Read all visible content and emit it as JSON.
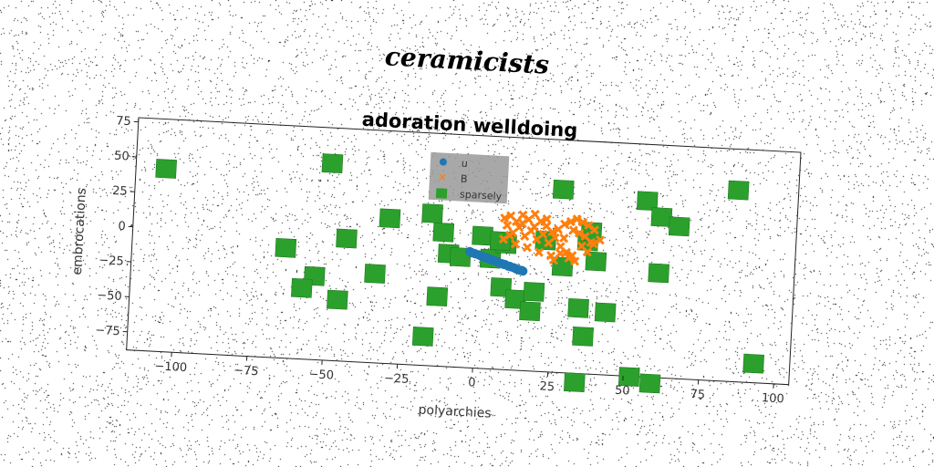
{
  "suptitle": "ceramicists",
  "chart_data": {
    "type": "scatter",
    "title": "adoration welldoing",
    "xlabel": "polyarchies",
    "ylabel": "embrocations",
    "xlim": [
      -115,
      105
    ],
    "ylim": [
      -88,
      78
    ],
    "xticks": [
      -100,
      -75,
      -50,
      -25,
      0,
      25,
      50,
      75,
      100
    ],
    "yticks": [
      -75,
      -50,
      -25,
      0,
      25,
      50,
      75
    ],
    "grid": false,
    "legend_position": "upper-center",
    "series": [
      {
        "name": "u",
        "color": "#1f77b4",
        "marker": "circle",
        "points": [
          [
            -3,
            -5
          ],
          [
            -2,
            -6
          ],
          [
            -1,
            -6.5
          ],
          [
            0,
            -7
          ],
          [
            1,
            -8
          ],
          [
            2,
            -8.5
          ],
          [
            3,
            -9
          ],
          [
            4,
            -10
          ],
          [
            5,
            -10.5
          ],
          [
            6,
            -11
          ],
          [
            7,
            -12
          ],
          [
            8,
            -12.5
          ],
          [
            9,
            -13
          ],
          [
            10,
            -14
          ],
          [
            11,
            -14.5
          ],
          [
            12,
            -15
          ],
          [
            13,
            -16
          ],
          [
            14,
            -16.5
          ],
          [
            15,
            -17
          ],
          [
            -2.5,
            -5.5
          ],
          [
            0.5,
            -7.5
          ],
          [
            2.5,
            -9
          ],
          [
            4.5,
            -10
          ],
          [
            6.5,
            -11.5
          ],
          [
            8.5,
            -13
          ],
          [
            10.5,
            -14
          ],
          [
            12.5,
            -15.5
          ],
          [
            14.5,
            -16.5
          ]
        ]
      },
      {
        "name": "B",
        "color": "#ff7f0e",
        "marker": "x",
        "points": [
          [
            8,
            20
          ],
          [
            10,
            22
          ],
          [
            12,
            18
          ],
          [
            14,
            23
          ],
          [
            16,
            20
          ],
          [
            18,
            24
          ],
          [
            20,
            19
          ],
          [
            22,
            21
          ],
          [
            9,
            15
          ],
          [
            11,
            10
          ],
          [
            13,
            14
          ],
          [
            15,
            8
          ],
          [
            17,
            12
          ],
          [
            19,
            6
          ],
          [
            21,
            10
          ],
          [
            23,
            4
          ],
          [
            25,
            8
          ],
          [
            27,
            2
          ],
          [
            29,
            -2
          ],
          [
            31,
            -4
          ],
          [
            26,
            14
          ],
          [
            28,
            18
          ],
          [
            30,
            20
          ],
          [
            32,
            22
          ],
          [
            34,
            20
          ],
          [
            36,
            18
          ],
          [
            38,
            15
          ],
          [
            33,
            12
          ],
          [
            35,
            10
          ],
          [
            37,
            6
          ],
          [
            34,
            3
          ],
          [
            36,
            -1
          ],
          [
            30,
            -6
          ],
          [
            27,
            -3
          ],
          [
            24,
            -5
          ],
          [
            20,
            -3
          ],
          [
            16,
            0
          ],
          [
            12,
            2
          ],
          [
            8,
            5
          ],
          [
            10,
            8
          ],
          [
            14,
            17
          ],
          [
            18,
            15
          ],
          [
            22,
            16
          ],
          [
            25,
            -8
          ],
          [
            32,
            -8
          ],
          [
            38,
            5
          ],
          [
            40,
            8
          ],
          [
            24,
            12
          ],
          [
            28,
            8
          ],
          [
            31,
            14
          ]
        ]
      },
      {
        "name": "sparsely",
        "color": "#2ca02c",
        "marker": "square",
        "points": [
          [
            -105,
            42
          ],
          [
            -50,
            52
          ],
          [
            -44,
            -1
          ],
          [
            -64,
            -10
          ],
          [
            -46,
            -45
          ],
          [
            -30,
            15
          ],
          [
            -54,
            -29
          ],
          [
            -58,
            -38
          ],
          [
            -34,
            -25
          ],
          [
            -17,
            -68
          ],
          [
            -16,
            20
          ],
          [
            -12,
            7
          ],
          [
            -10,
            -8
          ],
          [
            -13,
            -39
          ],
          [
            -6,
            -10
          ],
          [
            1,
            6
          ],
          [
            4,
            -10
          ],
          [
            9,
            1
          ],
          [
            7,
            3
          ],
          [
            8,
            -30
          ],
          [
            13,
            -38
          ],
          [
            19,
            -32
          ],
          [
            18,
            -46
          ],
          [
            22,
            5
          ],
          [
            28,
            -13
          ],
          [
            27,
            42
          ],
          [
            34,
            -42
          ],
          [
            36,
            6
          ],
          [
            37,
            13
          ],
          [
            39,
            -8
          ],
          [
            43,
            -44
          ],
          [
            36,
            -62
          ],
          [
            34,
            -95
          ],
          [
            55,
            37
          ],
          [
            60,
            26
          ],
          [
            66,
            20
          ],
          [
            85,
            48
          ],
          [
            60,
            -14
          ],
          [
            52,
            -89
          ],
          [
            59,
            -93
          ],
          [
            93,
            -75
          ]
        ]
      }
    ]
  }
}
